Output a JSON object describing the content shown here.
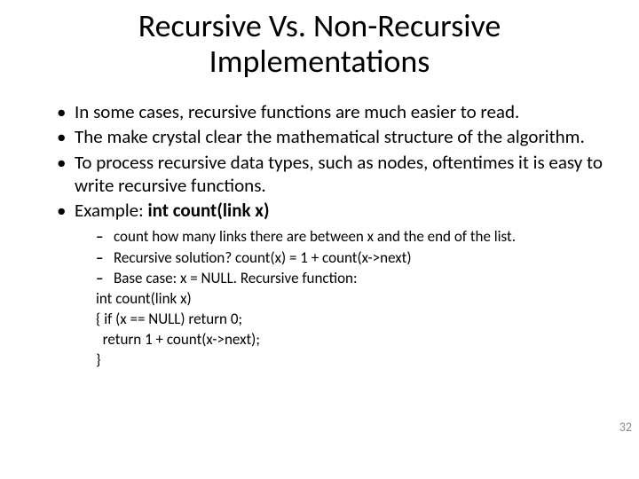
{
  "title": "Recursive Vs. Non-Recursive Implementations",
  "bullets": {
    "b1": "In some cases, recursive functions are much easier to read.",
    "b2": "The make crystal clear the mathematical structure of the algorithm.",
    "b3": "To process recursive data types, such as nodes, oftentimes it is easy to write recursive functions.",
    "b4_prefix": "Example: ",
    "b4_bold": "int count(link x)"
  },
  "sub": {
    "s1": "count how many links there are between x and the end of the list.",
    "s2": "Recursive solution?   count(x) = 1 + count(x->next)",
    "s3": "Base case: x = NULL.  Recursive function:",
    "c1": "int count(link x)",
    "c2": "{ if (x == NULL) return 0;",
    "c3": "  return 1 + count(x->next);",
    "c4": "}"
  },
  "page_number": "32",
  "style": {
    "background_color": "#ffffff",
    "text_color": "#000000",
    "page_num_color": "#8a8a8a",
    "title_fontsize": 36,
    "bullet_fontsize": 21,
    "sub_fontsize": 17,
    "font_family": "Calibri"
  }
}
